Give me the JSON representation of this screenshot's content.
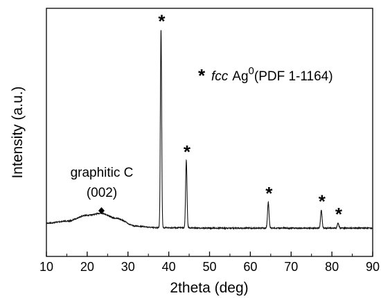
{
  "chart_data": {
    "type": "line",
    "xlabel": "2theta (deg)",
    "ylabel": "Intensity (a.u.)",
    "xlim": [
      10,
      90
    ],
    "y_ticks_shown": false,
    "grid": false,
    "x_ticks": [
      10,
      20,
      30,
      40,
      50,
      60,
      70,
      80,
      90
    ],
    "series": [
      {
        "baseline_points": [
          [
            10,
            0.035
          ],
          [
            15,
            0.045
          ],
          [
            20,
            0.075
          ],
          [
            23.5,
            0.085
          ],
          [
            27,
            0.06
          ],
          [
            32,
            0.02
          ],
          [
            37,
            0.012
          ],
          [
            40,
            0.012
          ],
          [
            50,
            0.01
          ],
          [
            60,
            0.01
          ],
          [
            70,
            0.01
          ],
          [
            80,
            0.01
          ],
          [
            90,
            0.01
          ]
        ],
        "peaks": [
          {
            "x": 38.1,
            "y": 1.0,
            "width": 0.22
          },
          {
            "x": 44.3,
            "y": 0.34,
            "width": 0.24
          },
          {
            "x": 64.4,
            "y": 0.13,
            "width": 0.26
          },
          {
            "x": 77.4,
            "y": 0.09,
            "width": 0.26
          },
          {
            "x": 81.5,
            "y": 0.025,
            "width": 0.26
          }
        ]
      }
    ],
    "star_markers": [
      38.1,
      44.3,
      64.4,
      77.4,
      81.5
    ],
    "diamond_marker_x": 23.5,
    "annotations": {
      "graphite_label_line1": "graphitic C",
      "graphite_label_line2": "(002)",
      "legend_star": "*",
      "legend_italic": "fcc",
      "legend_element": "Ag",
      "legend_superscript": "0",
      "legend_reference": "(PDF 1-1164)"
    }
  }
}
